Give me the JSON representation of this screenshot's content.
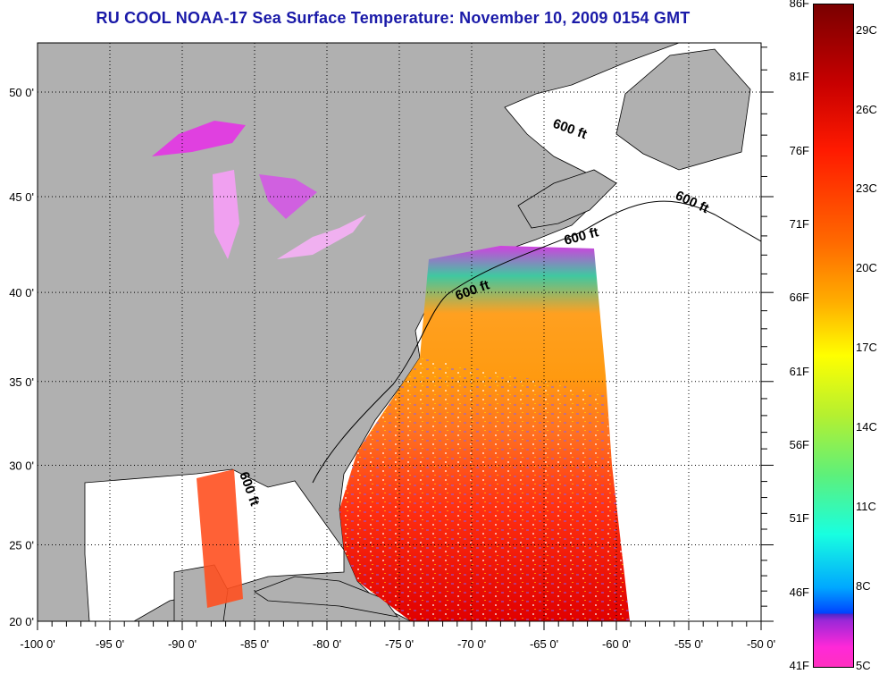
{
  "title": "RU COOL  NOAA-17  Sea Surface Temperature:  November 10, 2009 0154 GMT",
  "map": {
    "lon_ticks": [
      -100,
      -95,
      -90,
      -85,
      -80,
      -75,
      -70,
      -65,
      -60,
      -55,
      -50
    ],
    "lon_labels": [
      "-100 0'",
      "-95 0'",
      "-90 0'",
      "-85 0'",
      "-80 0'",
      "-75 0'",
      "-70 0'",
      "-65 0'",
      "-60 0'",
      "-55 0'",
      "-50 0'"
    ],
    "lat_ticks": [
      20,
      25,
      30,
      35,
      40,
      45,
      50
    ],
    "lat_labels": [
      "20 0'",
      "25 0'",
      "30 0'",
      "35 0'",
      "40 0'",
      "45 0'",
      "50 0'"
    ],
    "lon_range": [
      -100,
      -50
    ],
    "lat_range": [
      20,
      52.5
    ],
    "isobath_labels": [
      "600 ft",
      "600 ft",
      "600 ft",
      "600 ft",
      "600 ft"
    ],
    "colors": {
      "land": "#b0b0b0",
      "ocean": "#ffffff",
      "title": "#1a1aa8"
    }
  },
  "colorbar": {
    "fahrenheit_labels": [
      "86F",
      "81F",
      "76F",
      "71F",
      "66F",
      "61F",
      "56F",
      "51F",
      "46F",
      "41F"
    ],
    "celsius_labels": [
      "29C",
      "26C",
      "23C",
      "20C",
      "17C",
      "14C",
      "11C",
      "8C",
      "5C"
    ],
    "range_f": [
      41,
      86
    ]
  }
}
